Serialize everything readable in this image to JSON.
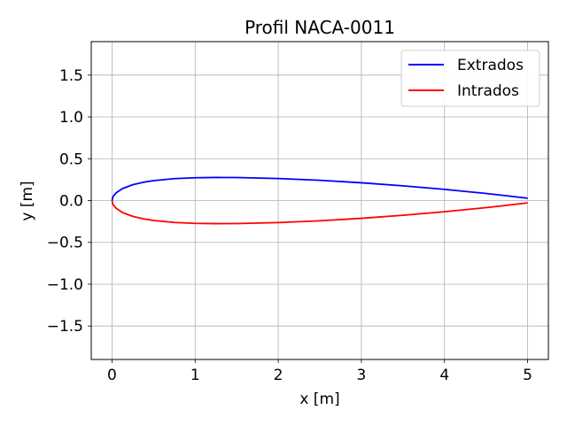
{
  "chart_data": {
    "type": "line",
    "title": "Profil NACA-0011",
    "xlabel": "x [m]",
    "ylabel": "y [m]",
    "xlim": [
      -0.25,
      5.25
    ],
    "ylim": [
      -1.9,
      1.9
    ],
    "x_ticks": [
      0,
      1,
      2,
      3,
      4,
      5
    ],
    "x_tick_labels": [
      "0",
      "1",
      "2",
      "3",
      "4",
      "5"
    ],
    "y_ticks": [
      1.5,
      1.0,
      0.5,
      0.0,
      -0.5,
      -1.0,
      -1.5
    ],
    "y_tick_labels": [
      "1.5",
      "1.0",
      "0.5",
      "0.0",
      "−0.5",
      "−1.0",
      "−1.5"
    ],
    "grid": true,
    "legend_position": "upper right",
    "series": [
      {
        "name": "Extrados",
        "color": "#0000ff",
        "x": [
          0,
          0.0125,
          0.05,
          0.125,
          0.25,
          0.375,
          0.5,
          0.75,
          1.0,
          1.25,
          1.5,
          2.0,
          2.5,
          3.0,
          3.5,
          4.0,
          4.5,
          4.75,
          5.0
        ],
        "y": [
          0,
          0.0483,
          0.0926,
          0.1427,
          0.1893,
          0.2187,
          0.2386,
          0.2621,
          0.2729,
          0.2757,
          0.275,
          0.2637,
          0.2422,
          0.2124,
          0.1762,
          0.1338,
          0.0846,
          0.0569,
          0.0275
        ]
      },
      {
        "name": "Intrados",
        "color": "#ff0000",
        "x": [
          0,
          0.0125,
          0.05,
          0.125,
          0.25,
          0.375,
          0.5,
          0.75,
          1.0,
          1.25,
          1.5,
          2.0,
          2.5,
          3.0,
          3.5,
          4.0,
          4.5,
          4.75,
          5.0
        ],
        "y": [
          0,
          -0.0483,
          -0.0926,
          -0.1427,
          -0.1893,
          -0.2187,
          -0.2386,
          -0.2621,
          -0.2729,
          -0.2757,
          -0.275,
          -0.2637,
          -0.2422,
          -0.2124,
          -0.1762,
          -0.1338,
          -0.0846,
          -0.0569,
          -0.0275
        ]
      }
    ]
  }
}
